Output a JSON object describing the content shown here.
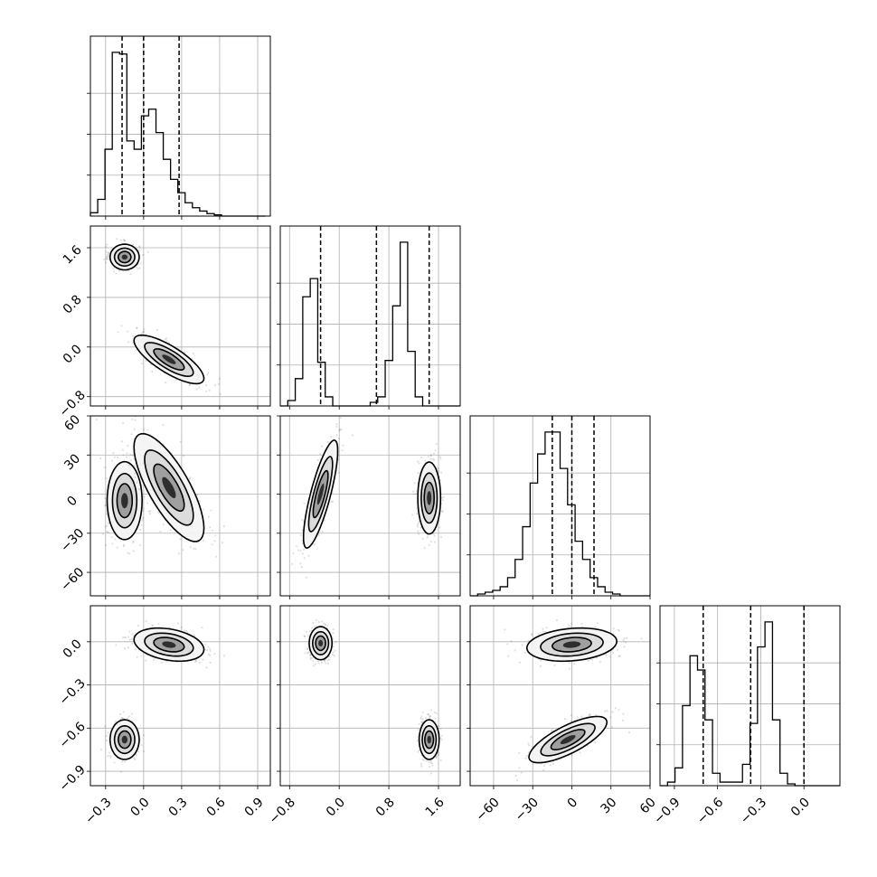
{
  "chart_data": {
    "type": "corner",
    "parameters": 4,
    "quantile_lines": "dashed",
    "grid": true,
    "panels": [
      {
        "panel": "hist",
        "row": 0,
        "col": 0,
        "x_ticks": [
          "-0.3",
          "0.0",
          "0.3",
          "0.6",
          "0.9"
        ],
        "xlim": [
          -0.42,
          1.0
        ],
        "bin_edges_start": -0.42,
        "bin_width": 0.0575,
        "counts": [
          0.02,
          0.1,
          0.4,
          0.98,
          0.97,
          0.45,
          0.4,
          0.6,
          0.64,
          0.5,
          0.34,
          0.22,
          0.14,
          0.08,
          0.05,
          0.03,
          0.015,
          0.007,
          0,
          0,
          0,
          0,
          0,
          0
        ],
        "quantiles": [
          -0.17,
          0.0,
          0.28
        ]
      },
      {
        "panel": "hist",
        "row": 1,
        "col": 1,
        "x_ticks": [
          "-0.8",
          "0.0",
          "0.8",
          "1.6"
        ],
        "xlim": [
          -0.95,
          1.95
        ],
        "bin_edges_start": -0.95,
        "bin_width": 0.1208,
        "counts": [
          0,
          0.03,
          0.15,
          0.6,
          0.7,
          0.24,
          0.05,
          0,
          0,
          0,
          0,
          0,
          0.02,
          0.05,
          0.25,
          0.55,
          0.9,
          0.3,
          0.05,
          0,
          0,
          0,
          0,
          0
        ],
        "quantiles": [
          -0.3,
          0.6,
          1.45
        ]
      },
      {
        "panel": "hist",
        "row": 2,
        "col": 2,
        "x_ticks": [
          "-60",
          "-30",
          "0",
          "30",
          "60"
        ],
        "xlim": [
          -78,
          60
        ],
        "bin_edges_start": -78,
        "bin_width": 5.75,
        "counts": [
          0,
          0.01,
          0.02,
          0.03,
          0.05,
          0.1,
          0.2,
          0.38,
          0.62,
          0.78,
          0.9,
          0.9,
          0.7,
          0.5,
          0.3,
          0.2,
          0.1,
          0.05,
          0.02,
          0.01,
          0,
          0,
          0,
          0
        ],
        "quantiles": [
          -15,
          0,
          17
        ]
      },
      {
        "panel": "hist",
        "row": 3,
        "col": 3,
        "x_ticks": [
          "-0.9",
          "-0.6",
          "-0.3",
          "0.0"
        ],
        "xlim": [
          -1.0,
          0.25
        ],
        "bin_edges_start": -1.0,
        "bin_width": 0.0521,
        "counts": [
          0,
          0.02,
          0.1,
          0.45,
          0.73,
          0.65,
          0.37,
          0.07,
          0.02,
          0.02,
          0.02,
          0.12,
          0.35,
          0.78,
          0.92,
          0.37,
          0.07,
          0.01,
          0,
          0,
          0,
          0,
          0,
          0
        ],
        "quantiles": [
          -0.7,
          -0.37,
          0.0
        ]
      },
      {
        "panel": "2d",
        "row": 1,
        "col": 0,
        "y_ticks": [
          "-0.8",
          "0.0",
          "0.8",
          "1.6"
        ],
        "ylim": [
          -0.95,
          1.95
        ],
        "clusters": [
          {
            "cx": -0.15,
            "cy": 1.45,
            "sx": 0.05,
            "sy": 0.09,
            "rho": 0.0,
            "n": 420
          },
          {
            "cx": 0.2,
            "cy": -0.2,
            "sx": 0.12,
            "sy": 0.17,
            "rho": -0.78,
            "n": 420
          }
        ]
      },
      {
        "panel": "2d",
        "row": 2,
        "col": 0,
        "y_ticks": [
          "-60",
          "-30",
          "0",
          "30",
          "60"
        ],
        "ylim": [
          -78,
          60
        ],
        "clusters": [
          {
            "cx": -0.15,
            "cy": -5,
            "sx": 0.06,
            "sy": 13,
            "rho": 0.0,
            "n": 420
          },
          {
            "cx": 0.2,
            "cy": 5,
            "sx": 0.12,
            "sy": 18,
            "rho": -0.75,
            "n": 420
          }
        ]
      },
      {
        "panel": "2d",
        "row": 3,
        "col": 0,
        "y_ticks": [
          "-0.9",
          "-0.6",
          "-0.3",
          "0.0"
        ],
        "ylim": [
          -1.0,
          0.25
        ],
        "clusters": [
          {
            "cx": -0.15,
            "cy": -0.68,
            "sx": 0.05,
            "sy": 0.06,
            "rho": 0.0,
            "n": 420
          },
          {
            "cx": 0.2,
            "cy": -0.02,
            "sx": 0.12,
            "sy": 0.05,
            "rho": -0.3,
            "n": 420
          }
        ]
      },
      {
        "panel": "2d",
        "row": 2,
        "col": 1,
        "clusters": [
          {
            "cx": -0.3,
            "cy": 0,
            "sx": 0.12,
            "sy": 18,
            "rho": 0.8,
            "n": 420
          },
          {
            "cx": 1.45,
            "cy": -3,
            "sx": 0.08,
            "sy": 12,
            "rho": 0.0,
            "n": 420
          }
        ]
      },
      {
        "panel": "2d",
        "row": 3,
        "col": 1,
        "clusters": [
          {
            "cx": -0.3,
            "cy": -0.01,
            "sx": 0.08,
            "sy": 0.05,
            "rho": 0.0,
            "n": 420
          },
          {
            "cx": 1.45,
            "cy": -0.68,
            "sx": 0.07,
            "sy": 0.06,
            "rho": 0.0,
            "n": 420
          }
        ]
      },
      {
        "panel": "2d",
        "row": 3,
        "col": 2,
        "clusters": [
          {
            "cx": 0,
            "cy": -0.02,
            "sx": 15,
            "sy": 0.05,
            "rho": 0.2,
            "n": 420
          },
          {
            "cx": -3,
            "cy": -0.68,
            "sx": 13,
            "sy": 0.07,
            "rho": 0.75,
            "n": 420
          }
        ]
      }
    ]
  }
}
